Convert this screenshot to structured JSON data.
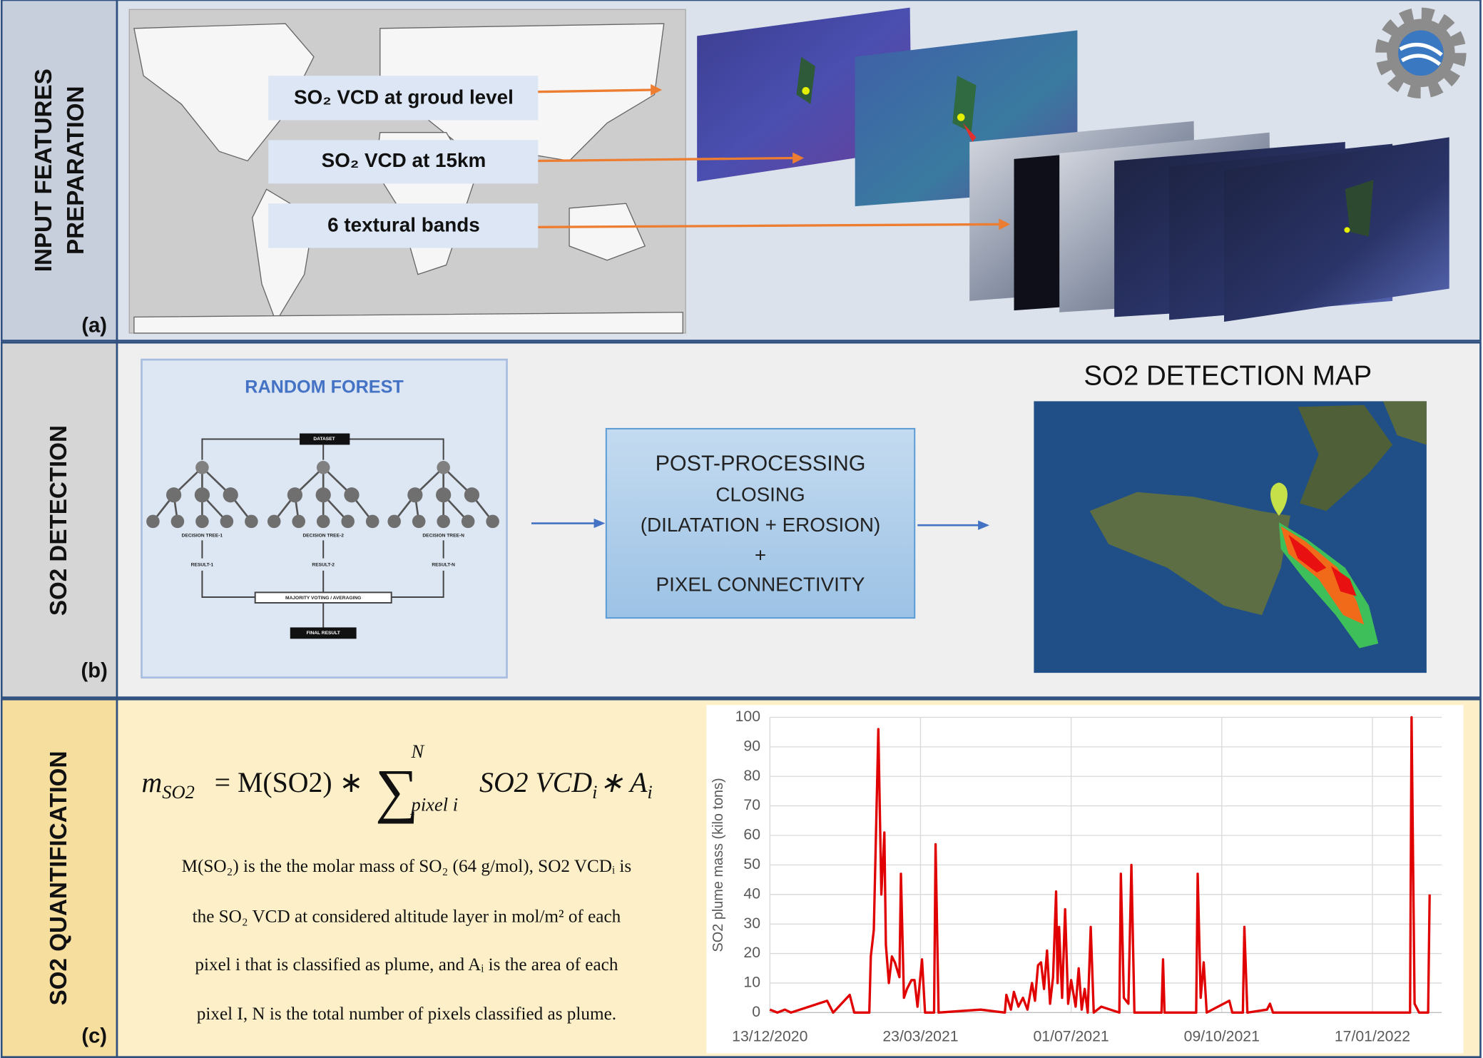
{
  "panels": [
    {
      "label": "(a)",
      "title": [
        "INPUT FEATURES",
        "PREPARATION"
      ]
    },
    {
      "label": "(b)",
      "title": [
        "SO2 DETECTION"
      ]
    },
    {
      "label": "(c)",
      "title": [
        "SO2  QUANTIFICATION"
      ]
    }
  ],
  "input_features": [
    "SO₂ VCD at groud level",
    "SO₂ VCD at 15km",
    "6 textural bands"
  ],
  "random_forest": {
    "title": "RANDOM FOREST",
    "dataset": "DATASET",
    "trees": [
      "DECISION TREE-1",
      "DECISION TREE-2",
      "DECISION TREE-N"
    ],
    "results": [
      "RESULT-1",
      "RESULT-2",
      "RESULT-N"
    ],
    "aggregation": "MAJORITY VOTING / AVERAGING",
    "final": "FINAL RESULT"
  },
  "post_processing": {
    "title": "POST-PROCESSING",
    "lines": [
      "CLOSING",
      "(DILATATION + EROSION)",
      "+",
      "PIXEL CONNECTIVITY"
    ]
  },
  "detection_map": {
    "title": "SO2 DETECTION MAP"
  },
  "formula": {
    "lhs": "m",
    "lhs_sub": "SO2",
    "rhs": "=  M(SO2) ∗",
    "sum": "∑",
    "sum_sup": "N",
    "sum_sub": "pixel i",
    "term": "SO2 VCD",
    "term_sub": "i",
    "times": "∗  A",
    "times_sub": "i"
  },
  "description": [
    "M(SO₂) is the the molar mass of SO₂ (64 g/mol), SO2 VCDᵢ is",
    "the SO₂ VCD at considered altitude layer in mol/m² of each",
    "pixel i that is classified as plume, and Aᵢ is the area of each",
    "pixel I, N is the total number of pixels classified as plume."
  ],
  "chart_data": {
    "type": "line",
    "ylabel": "SO2 plume mass (kilo tons)",
    "color": "#e00000",
    "grid": true,
    "xlim": [
      "2020-12-13",
      "2022-03-04"
    ],
    "ylim": [
      0,
      100
    ],
    "yticks": [
      0,
      10,
      20,
      30,
      40,
      50,
      60,
      70,
      80,
      90,
      100
    ],
    "xticks": [
      {
        "value": "2020-12-13",
        "label": "13/12/2020"
      },
      {
        "value": "2021-03-23",
        "label": "23/03/2021"
      },
      {
        "value": "2021-07-01",
        "label": "01/07/2021"
      },
      {
        "value": "2021-10-09",
        "label": "09/10/2021"
      },
      {
        "value": "2022-01-17",
        "label": "17/01/2022"
      }
    ],
    "x": [
      "2020-12-13",
      "2020-12-18",
      "2020-12-23",
      "2020-12-27",
      "2021-01-20",
      "2021-01-24",
      "2021-02-04",
      "2021-02-07",
      "2021-02-17",
      "2021-02-18",
      "2021-02-20",
      "2021-02-23",
      "2021-02-25",
      "2021-02-27",
      "2021-02-28",
      "2021-03-02",
      "2021-03-04",
      "2021-03-06",
      "2021-03-09",
      "2021-03-10",
      "2021-03-12",
      "2021-03-14",
      "2021-03-17",
      "2021-03-19",
      "2021-03-21",
      "2021-03-24",
      "2021-03-26",
      "2021-04-01",
      "2021-04-02",
      "2021-04-04",
      "2021-05-02",
      "2021-05-18",
      "2021-05-19",
      "2021-05-22",
      "2021-05-24",
      "2021-05-27",
      "2021-05-30",
      "2021-06-02",
      "2021-06-05",
      "2021-06-07",
      "2021-06-09",
      "2021-06-11",
      "2021-06-13",
      "2021-06-15",
      "2021-06-17",
      "2021-06-19",
      "2021-06-21",
      "2021-06-22",
      "2021-06-23",
      "2021-06-25",
      "2021-06-27",
      "2021-06-29",
      "2021-07-01",
      "2021-07-04",
      "2021-07-06",
      "2021-07-08",
      "2021-07-10",
      "2021-07-12",
      "2021-07-14",
      "2021-07-16",
      "2021-07-21",
      "2021-08-02",
      "2021-08-03",
      "2021-08-05",
      "2021-08-08",
      "2021-08-10",
      "2021-08-12",
      "2021-08-30",
      "2021-08-31",
      "2021-09-01",
      "2021-09-22",
      "2021-09-23",
      "2021-09-25",
      "2021-09-27",
      "2021-09-29",
      "2021-10-14",
      "2021-10-16",
      "2021-10-23",
      "2021-10-24",
      "2021-10-26",
      "2021-11-08",
      "2021-11-10",
      "2021-11-12",
      "2022-02-11",
      "2022-02-12",
      "2022-02-14",
      "2022-02-17",
      "2022-02-23",
      "2022-02-24"
    ],
    "values": [
      1,
      0,
      1,
      0,
      4,
      0,
      6,
      0,
      0,
      19,
      28,
      96,
      40,
      61,
      23,
      10,
      19,
      17,
      12,
      47,
      5,
      8,
      11,
      11,
      2,
      18,
      0,
      0,
      57,
      0,
      1,
      0,
      6,
      1,
      7,
      2,
      5,
      1,
      10,
      4,
      16,
      17,
      8,
      21,
      3,
      12,
      41,
      10,
      29,
      5,
      35,
      3,
      11,
      2,
      15,
      1,
      8,
      0,
      29,
      0,
      2,
      0,
      47,
      5,
      3,
      50,
      0,
      0,
      18,
      0,
      0,
      47,
      5,
      17,
      0,
      4,
      0,
      0,
      29,
      0,
      1,
      3,
      0,
      0,
      100,
      3,
      0,
      0,
      40
    ]
  }
}
